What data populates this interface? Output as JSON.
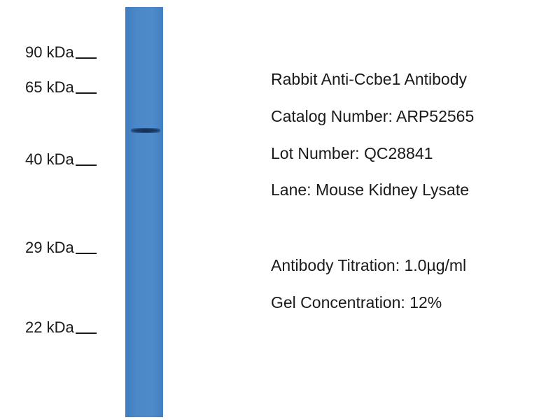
{
  "blot": {
    "lane_color": "#4a88c8",
    "band_color": "#1f3e6e",
    "markers": [
      {
        "label": "90 kDa"
      },
      {
        "label": "65 kDa"
      },
      {
        "label": "40 kDa"
      },
      {
        "label": "29 kDa"
      },
      {
        "label": "22 kDa"
      }
    ]
  },
  "info": {
    "antibody": "Rabbit Anti-Ccbe1 Antibody",
    "catalog": "Catalog Number: ARP52565",
    "lot": "Lot Number: QC28841",
    "lane": "Lane: Mouse Kidney Lysate",
    "titration": "Antibody Titration: 1.0µg/ml",
    "gel": "Gel Concentration: 12%"
  }
}
